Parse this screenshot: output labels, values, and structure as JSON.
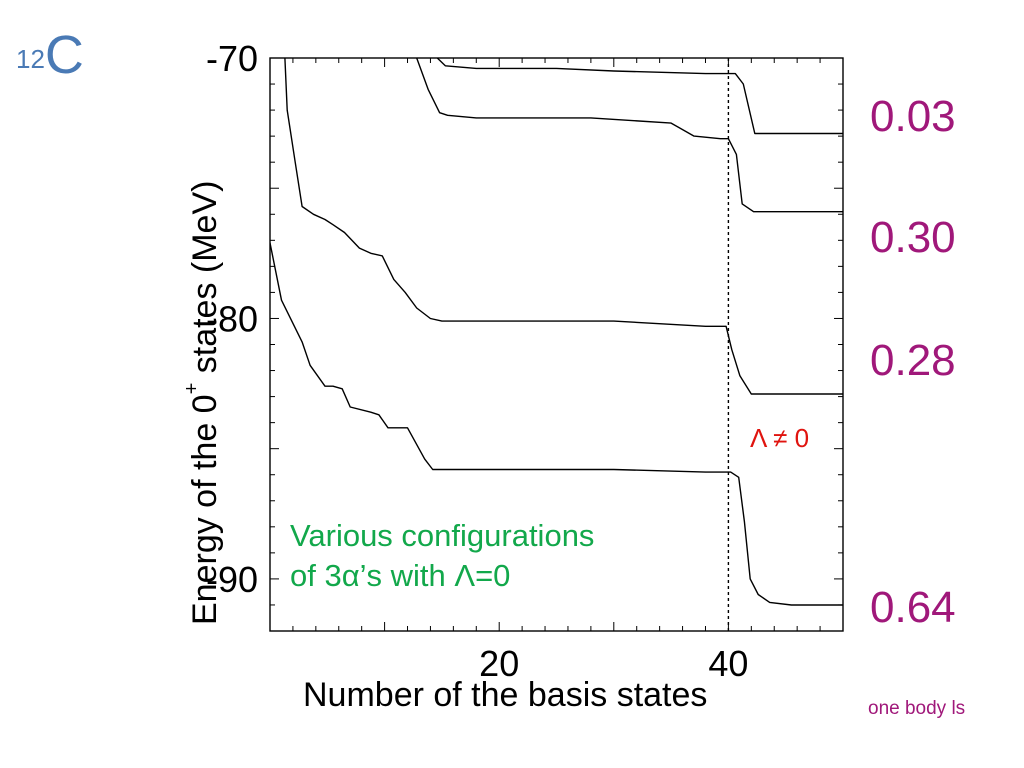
{
  "nucleus": {
    "mass_number": "12",
    "symbol": "C"
  },
  "colors": {
    "nucleus": "#4a7ab5",
    "ratios": "#a0187a",
    "lambda": "#e0140f",
    "configs": "#12a84b",
    "lines": "#000000"
  },
  "annotations": {
    "lambda_nonzero": "Λ ≠ 0",
    "configs_line1": "Various configurations",
    "configs_line2": "of 3α’s  with Λ=0",
    "ratios": [
      "0.03",
      "0.30",
      "0.28",
      "0.64"
    ],
    "ratio_caption": "one body ls"
  },
  "chart_data": {
    "type": "line",
    "title": "",
    "xlabel": "Number of the basis states",
    "ylabel_parts": {
      "before": "Energy of the 0",
      "sup": "+",
      "after": " states (MeV)"
    },
    "xlim": [
      0,
      50
    ],
    "ylim": [
      -92,
      -70
    ],
    "xticks": [
      20,
      40
    ],
    "yticks": [
      -70,
      -80,
      -90
    ],
    "ytick_labels": [
      "-70",
      "-80",
      "-90"
    ],
    "xtick_labels": [
      "20",
      "40"
    ],
    "vertical_marker_x": 40,
    "grid": false,
    "series": [
      {
        "x": [
          0.0,
          1.0,
          2.8,
          3.5,
          4.8,
          5.5,
          6.3,
          7.0,
          8.8,
          9.5,
          10.3,
          11.2,
          12.0,
          13.5,
          14.2,
          20,
          30,
          38,
          40.2,
          40.9,
          41.4,
          41.9,
          42.6,
          43.6,
          45.5,
          47,
          50
        ],
        "y": [
          -77.1,
          -79.3,
          -80.9,
          -81.8,
          -82.6,
          -82.6,
          -82.7,
          -83.4,
          -83.6,
          -83.7,
          -84.2,
          -84.2,
          -84.2,
          -85.4,
          -85.8,
          -85.8,
          -85.8,
          -85.9,
          -85.9,
          -86.1,
          -87.8,
          -90.0,
          -90.6,
          -90.9,
          -91.0,
          -91.0,
          -91.0
        ]
      },
      {
        "x": [
          1.3,
          1.5,
          2.2,
          2.8,
          3.8,
          4.8,
          5.5,
          6.5,
          7.8,
          8.8,
          9.8,
          10.8,
          11.8,
          12.8,
          14,
          15,
          20,
          30,
          38,
          39.8,
          40.3,
          41.0,
          42,
          45,
          50
        ],
        "y": [
          -70,
          -72,
          -74,
          -75.7,
          -76,
          -76.2,
          -76.4,
          -76.7,
          -77.3,
          -77.5,
          -77.6,
          -78.5,
          -79.0,
          -79.6,
          -80.0,
          -80.1,
          -80.1,
          -80.1,
          -80.3,
          -80.3,
          -81.2,
          -82.2,
          -82.9,
          -82.9,
          -82.9
        ]
      },
      {
        "x": [
          12.8,
          13.8,
          14.8,
          15.5,
          18,
          28,
          35,
          37,
          39.3,
          40.0,
          40.7,
          41.2,
          42.2,
          45,
          50
        ],
        "y": [
          -70,
          -71.2,
          -72.1,
          -72.2,
          -72.3,
          -72.3,
          -72.5,
          -73.0,
          -73.1,
          -73.1,
          -73.7,
          -75.6,
          -75.9,
          -75.9,
          -75.9
        ]
      },
      {
        "x": [
          14.6,
          15.3,
          18,
          25,
          30,
          38,
          40.6,
          41.3,
          42.3,
          45,
          50
        ],
        "y": [
          -70,
          -70.3,
          -70.4,
          -70.4,
          -70.5,
          -70.6,
          -70.6,
          -71.0,
          -72.9,
          -72.9,
          -72.9
        ]
      }
    ]
  }
}
